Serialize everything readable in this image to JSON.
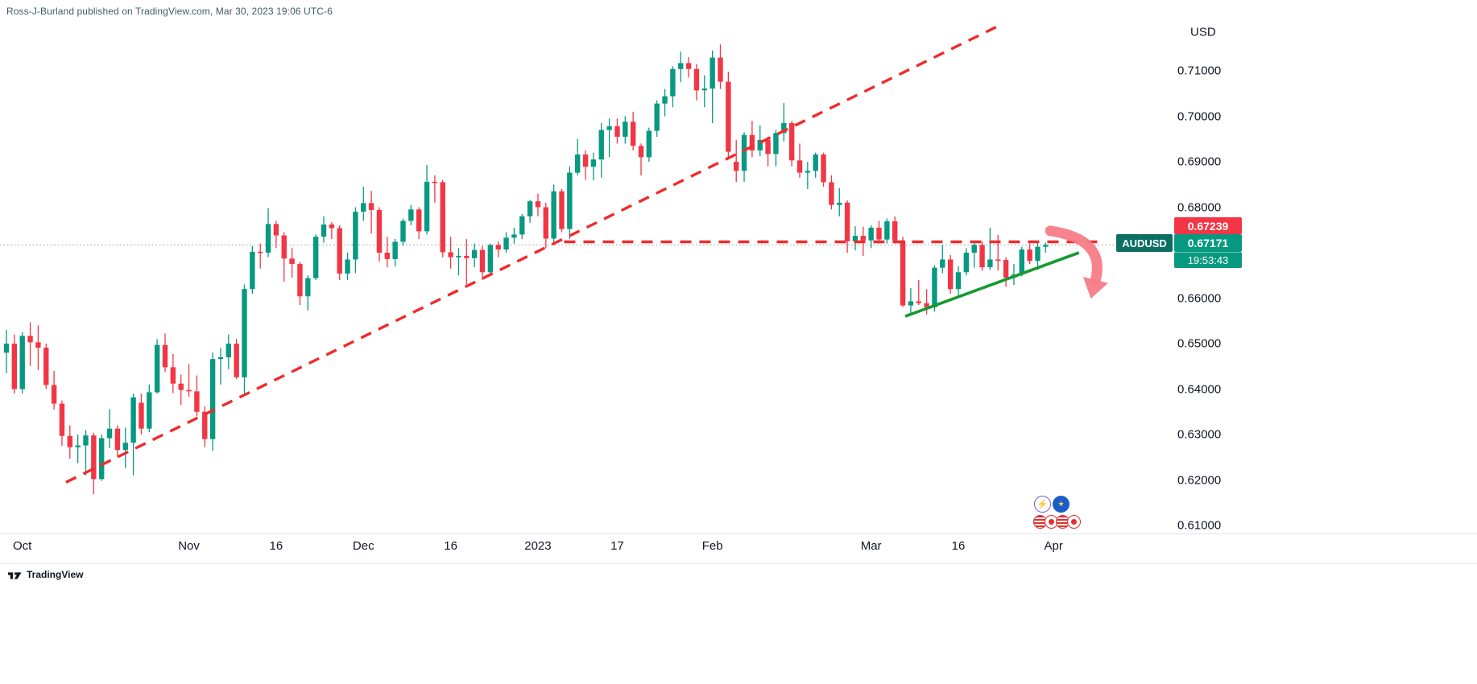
{
  "meta": {
    "attribution": "Ross-J-Burland published on TradingView.com, Mar 30, 2023 19:06 UTC-6",
    "footer_brand": "TradingView"
  },
  "colors": {
    "up": "#089981",
    "down": "#F23645",
    "trend_red": "#f02b2b",
    "trend_green": "#159a30",
    "arrow_pink": "#f77c88",
    "axis_text": "#131722",
    "muted_line": "#e0e3eb",
    "price_line": "#9598a1",
    "attribution": "#3f5c63",
    "symbol_badge_bg": "#0b6f62",
    "price_badge_bg": "#089981",
    "counter_badge_bg": "#f23645"
  },
  "price_axis": {
    "currency_label": "USD",
    "ticks": [
      {
        "price": 0.71,
        "label": "0.71000"
      },
      {
        "price": 0.7,
        "label": "0.70000"
      },
      {
        "price": 0.69,
        "label": "0.69000"
      },
      {
        "price": 0.68,
        "label": "0.68000"
      },
      {
        "price": 0.67,
        "label": "0.67000"
      },
      {
        "price": 0.66,
        "label": "0.66000"
      },
      {
        "price": 0.65,
        "label": "0.65000"
      },
      {
        "price": 0.64,
        "label": "0.64000"
      },
      {
        "price": 0.63,
        "label": "0.63000"
      },
      {
        "price": 0.62,
        "label": "0.62000"
      },
      {
        "price": 0.61,
        "label": "0.61000"
      }
    ],
    "labels": {
      "counter_price": "0.67239",
      "symbol": "AUDUSD",
      "last_price": "0.67171",
      "countdown": "19:53:43"
    }
  },
  "time_axis": {
    "ticks": [
      {
        "i": 2,
        "label": "Oct"
      },
      {
        "i": 23,
        "label": "Nov"
      },
      {
        "i": 34,
        "label": "16"
      },
      {
        "i": 45,
        "label": "Dec"
      },
      {
        "i": 56,
        "label": "16"
      },
      {
        "i": 67,
        "label": "2023"
      },
      {
        "i": 77,
        "label": "17"
      },
      {
        "i": 89,
        "label": "Feb"
      },
      {
        "i": 109,
        "label": "Mar"
      },
      {
        "i": 120,
        "label": "16"
      },
      {
        "i": 132,
        "label": "Apr"
      }
    ]
  },
  "events": {
    "top": [
      {
        "name": "lightning-event-icon",
        "glyph": "⚡",
        "cls": ""
      },
      {
        "name": "eu-flag-event-icon",
        "glyph": "★",
        "cls": "ev-eu"
      }
    ],
    "bottom": [
      {
        "name": "flag-event-icon",
        "cls": "ev-stripes"
      },
      {
        "name": "flag-event-icon",
        "cls": "ev-jp"
      },
      {
        "name": "flag-event-icon",
        "cls": "ev-stripes"
      },
      {
        "name": "flag-event-icon",
        "cls": "ev-jp"
      }
    ]
  },
  "chart_data": {
    "type": "candlestick",
    "symbol": "AUDUSD",
    "quote_currency": "USD",
    "last_price": 0.67171,
    "ylim": [
      0.608,
      0.7185
    ],
    "candles": [
      [
        0.648,
        0.653,
        0.6435,
        0.65
      ],
      [
        0.65,
        0.652,
        0.639,
        0.64
      ],
      [
        0.64,
        0.6525,
        0.639,
        0.6517
      ],
      [
        0.6517,
        0.6547,
        0.6451,
        0.6503
      ],
      [
        0.6503,
        0.654,
        0.6442,
        0.6491
      ],
      [
        0.6491,
        0.65,
        0.64,
        0.6409
      ],
      [
        0.6409,
        0.644,
        0.6355,
        0.6368
      ],
      [
        0.6368,
        0.6375,
        0.6275,
        0.6297
      ],
      [
        0.6297,
        0.632,
        0.6247,
        0.6272
      ],
      [
        0.6272,
        0.63,
        0.6237,
        0.6276
      ],
      [
        0.6276,
        0.631,
        0.621,
        0.6298
      ],
      [
        0.6298,
        0.6304,
        0.6169,
        0.6202
      ],
      [
        0.6202,
        0.63,
        0.6198,
        0.6292
      ],
      [
        0.6292,
        0.6356,
        0.627,
        0.6313
      ],
      [
        0.6313,
        0.632,
        0.625,
        0.6266
      ],
      [
        0.6266,
        0.6315,
        0.6226,
        0.6282
      ],
      [
        0.6282,
        0.639,
        0.621,
        0.6382
      ],
      [
        0.637,
        0.639,
        0.63,
        0.6313
      ],
      [
        0.6313,
        0.641,
        0.6305,
        0.6393
      ],
      [
        0.6393,
        0.651,
        0.639,
        0.6497
      ],
      [
        0.6497,
        0.6522,
        0.6437,
        0.6448
      ],
      [
        0.6448,
        0.6477,
        0.6391,
        0.6412
      ],
      [
        0.6412,
        0.6432,
        0.6365,
        0.6398
      ],
      [
        0.6398,
        0.6455,
        0.6383,
        0.6395
      ],
      [
        0.6395,
        0.643,
        0.634,
        0.635
      ],
      [
        0.635,
        0.6362,
        0.6272,
        0.629
      ],
      [
        0.629,
        0.648,
        0.6264,
        0.6466
      ],
      [
        0.6466,
        0.649,
        0.641,
        0.647
      ],
      [
        0.647,
        0.652,
        0.6444,
        0.65
      ],
      [
        0.65,
        0.651,
        0.6422,
        0.6426
      ],
      [
        0.6426,
        0.663,
        0.6386,
        0.662
      ],
      [
        0.662,
        0.6715,
        0.661,
        0.6702
      ],
      [
        0.6702,
        0.672,
        0.6665,
        0.67
      ],
      [
        0.67,
        0.6798,
        0.669,
        0.6763
      ],
      [
        0.6763,
        0.677,
        0.671,
        0.6738
      ],
      [
        0.6738,
        0.6745,
        0.6636,
        0.6687
      ],
      [
        0.6687,
        0.671,
        0.6645,
        0.6675
      ],
      [
        0.6675,
        0.668,
        0.6585,
        0.6604
      ],
      [
        0.6604,
        0.665,
        0.6573,
        0.6644
      ],
      [
        0.6644,
        0.674,
        0.664,
        0.6735
      ],
      [
        0.6735,
        0.678,
        0.6722,
        0.6762
      ],
      [
        0.6762,
        0.6767,
        0.673,
        0.6754
      ],
      [
        0.6754,
        0.676,
        0.664,
        0.6654
      ],
      [
        0.6654,
        0.67,
        0.664,
        0.6685
      ],
      [
        0.6685,
        0.68,
        0.6655,
        0.679
      ],
      [
        0.679,
        0.6845,
        0.677,
        0.6809
      ],
      [
        0.6809,
        0.6836,
        0.6742,
        0.6794
      ],
      [
        0.6794,
        0.68,
        0.668,
        0.67
      ],
      [
        0.67,
        0.6735,
        0.6668,
        0.6686
      ],
      [
        0.6686,
        0.673,
        0.667,
        0.6724
      ],
      [
        0.6724,
        0.6775,
        0.6715,
        0.677
      ],
      [
        0.677,
        0.6805,
        0.676,
        0.6795
      ],
      [
        0.6795,
        0.68,
        0.673,
        0.6747
      ],
      [
        0.6747,
        0.6893,
        0.674,
        0.6856
      ],
      [
        0.6856,
        0.687,
        0.681,
        0.6855
      ],
      [
        0.6855,
        0.686,
        0.669,
        0.6701
      ],
      [
        0.6701,
        0.6735,
        0.6665,
        0.669
      ],
      [
        0.669,
        0.671,
        0.665,
        0.6693
      ],
      [
        0.6693,
        0.673,
        0.663,
        0.6688
      ],
      [
        0.6688,
        0.672,
        0.6668,
        0.6706
      ],
      [
        0.6706,
        0.6715,
        0.664,
        0.6657
      ],
      [
        0.6657,
        0.672,
        0.665,
        0.6717
      ],
      [
        0.6717,
        0.6725,
        0.669,
        0.6707
      ],
      [
        0.6707,
        0.6745,
        0.67,
        0.6733
      ],
      [
        0.6733,
        0.6755,
        0.672,
        0.674
      ],
      [
        0.674,
        0.6785,
        0.673,
        0.678
      ],
      [
        0.678,
        0.6816,
        0.6766,
        0.6813
      ],
      [
        0.6813,
        0.683,
        0.678,
        0.68
      ],
      [
        0.68,
        0.681,
        0.671,
        0.6731
      ],
      [
        0.6731,
        0.685,
        0.672,
        0.6835
      ],
      [
        0.6835,
        0.684,
        0.6745,
        0.6752
      ],
      [
        0.6752,
        0.689,
        0.673,
        0.6876
      ],
      [
        0.6876,
        0.695,
        0.687,
        0.6916
      ],
      [
        0.6916,
        0.6925,
        0.686,
        0.6889
      ],
      [
        0.6889,
        0.692,
        0.6859,
        0.6905
      ],
      [
        0.6905,
        0.6985,
        0.6865,
        0.697
      ],
      [
        0.697,
        0.6995,
        0.691,
        0.6978
      ],
      [
        0.6978,
        0.6995,
        0.694,
        0.6955
      ],
      [
        0.6955,
        0.7,
        0.694,
        0.6988
      ],
      [
        0.6988,
        0.701,
        0.6925,
        0.6935
      ],
      [
        0.6935,
        0.694,
        0.687,
        0.691
      ],
      [
        0.691,
        0.6975,
        0.69,
        0.6968
      ],
      [
        0.6968,
        0.7035,
        0.6955,
        0.7028
      ],
      [
        0.7028,
        0.706,
        0.7,
        0.7044
      ],
      [
        0.7044,
        0.711,
        0.702,
        0.7104
      ],
      [
        0.7104,
        0.7142,
        0.7075,
        0.7117
      ],
      [
        0.7117,
        0.713,
        0.7085,
        0.7104
      ],
      [
        0.7104,
        0.7115,
        0.7035,
        0.7057
      ],
      [
        0.7057,
        0.709,
        0.702,
        0.7061
      ],
      [
        0.7061,
        0.7145,
        0.6985,
        0.7129
      ],
      [
        0.7129,
        0.7158,
        0.706,
        0.7076
      ],
      [
        0.7076,
        0.7098,
        0.691,
        0.6922
      ],
      [
        0.69,
        0.6948,
        0.6855,
        0.688
      ],
      [
        0.688,
        0.6965,
        0.6856,
        0.6959
      ],
      [
        0.6959,
        0.699,
        0.691,
        0.6925
      ],
      [
        0.6925,
        0.698,
        0.6912,
        0.6948
      ],
      [
        0.6948,
        0.6955,
        0.689,
        0.6917
      ],
      [
        0.6917,
        0.697,
        0.689,
        0.6963
      ],
      [
        0.6963,
        0.7029,
        0.6945,
        0.6985
      ],
      [
        0.6985,
        0.699,
        0.689,
        0.6903
      ],
      [
        0.6903,
        0.694,
        0.6865,
        0.6876
      ],
      [
        0.6876,
        0.69,
        0.684,
        0.688
      ],
      [
        0.688,
        0.692,
        0.6865,
        0.6916
      ],
      [
        0.6916,
        0.692,
        0.6845,
        0.6855
      ],
      [
        0.6855,
        0.687,
        0.6795,
        0.6805
      ],
      [
        0.6805,
        0.6842,
        0.678,
        0.681
      ],
      [
        0.681,
        0.6815,
        0.67,
        0.6725
      ],
      [
        0.6725,
        0.6758,
        0.6705,
        0.6737
      ],
      [
        0.6737,
        0.6757,
        0.6693,
        0.6727
      ],
      [
        0.6727,
        0.676,
        0.671,
        0.6755
      ],
      [
        0.6755,
        0.677,
        0.672,
        0.6729
      ],
      [
        0.6729,
        0.6775,
        0.672,
        0.6769
      ],
      [
        0.6769,
        0.678,
        0.672,
        0.6727
      ],
      [
        0.6727,
        0.6735,
        0.658,
        0.6584
      ],
      [
        0.6584,
        0.6622,
        0.6568,
        0.6593
      ],
      [
        0.6593,
        0.664,
        0.6585,
        0.6589
      ],
      [
        0.6589,
        0.662,
        0.6564,
        0.658
      ],
      [
        0.658,
        0.6672,
        0.657,
        0.6667
      ],
      [
        0.6667,
        0.6717,
        0.6655,
        0.6685
      ],
      [
        0.6685,
        0.6695,
        0.661,
        0.662
      ],
      [
        0.662,
        0.667,
        0.6605,
        0.6657
      ],
      [
        0.6657,
        0.671,
        0.665,
        0.67
      ],
      [
        0.67,
        0.6725,
        0.6667,
        0.6717
      ],
      [
        0.6717,
        0.6725,
        0.666,
        0.6668
      ],
      [
        0.6668,
        0.6755,
        0.6662,
        0.6685
      ],
      [
        0.6685,
        0.6739,
        0.6661,
        0.6684
      ],
      [
        0.6684,
        0.669,
        0.6625,
        0.6645
      ],
      [
        0.6645,
        0.6675,
        0.6629,
        0.6652
      ],
      [
        0.6652,
        0.6713,
        0.6648,
        0.6707
      ],
      [
        0.6707,
        0.672,
        0.6675,
        0.6682
      ],
      [
        0.6682,
        0.6725,
        0.6662,
        0.6713
      ],
      [
        0.6713,
        0.6722,
        0.67,
        0.6717
      ]
    ],
    "annotations": [
      {
        "id": "rising-dashed-trendline",
        "type": "trendline",
        "style": "dashed",
        "color": "trend_red",
        "from": {
          "i": 7.5,
          "price": 0.6195
        },
        "to": {
          "i": 125.2,
          "price": 0.72
        }
      },
      {
        "id": "horizontal-resistance-line",
        "type": "trendline",
        "style": "dashed",
        "color": "trend_red",
        "from": {
          "i": 70.3,
          "price": 0.67239
        },
        "to": {
          "i": 138,
          "price": 0.67239
        },
        "axis_label": "0.67239"
      },
      {
        "id": "short-term-support-line",
        "type": "trendline",
        "style": "solid",
        "color": "trend_green",
        "from": {
          "i": 113.3,
          "price": 0.656
        },
        "to": {
          "i": 135.2,
          "price": 0.67
        }
      },
      {
        "id": "bearish-curved-arrow",
        "type": "curved-arrow",
        "color": "arrow_pink",
        "from": {
          "i": 131.6,
          "price": 0.6748
        },
        "ctrl": {
          "i": 138.6,
          "price": 0.673
        },
        "to": {
          "i": 137.3,
          "price": 0.664
        }
      }
    ]
  }
}
